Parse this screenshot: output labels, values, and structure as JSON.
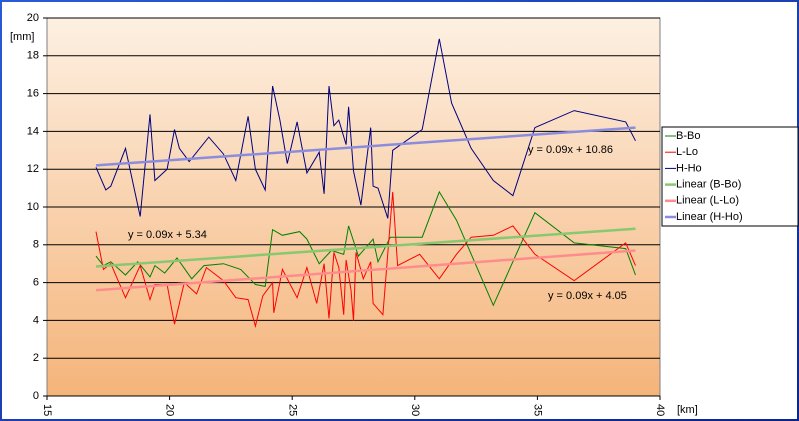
{
  "chart_data": {
    "type": "line",
    "y_label": "[mm]",
    "x_label": "[km]",
    "xlim": [
      15,
      40
    ],
    "xticks": [
      15,
      20,
      25,
      30,
      35,
      40
    ],
    "ylim": [
      0,
      20
    ],
    "yticks": [
      0,
      2,
      4,
      6,
      8,
      10,
      12,
      14,
      16,
      18,
      20
    ],
    "grid": true,
    "legend": "right",
    "series": [
      {
        "name": "B-Bo",
        "color": "#008000",
        "x": [
          17,
          17.3,
          17.6,
          18.2,
          18.7,
          19.2,
          19.4,
          19.8,
          20.3,
          20.9,
          21.4,
          22.2,
          22.9,
          23.5,
          23.9,
          24.2,
          24.6,
          25.3,
          25.6,
          26.1,
          26.6,
          27.1,
          27.3,
          27.7,
          28.3,
          28.5,
          29.0,
          30.3,
          31.0,
          31.7,
          33.2,
          34.9,
          36.5,
          38.6,
          39
        ],
        "values": [
          7.4,
          6.9,
          7.1,
          6.4,
          7.1,
          6.3,
          6.9,
          6.5,
          7.3,
          6.2,
          6.9,
          7.0,
          6.7,
          5.9,
          5.8,
          8.8,
          8.5,
          8.7,
          8.3,
          7.0,
          7.7,
          7.5,
          9.0,
          7.4,
          8.3,
          7.1,
          8.4,
          8.4,
          10.8,
          9.3,
          4.8,
          9.7,
          8.1,
          7.8,
          6.4
        ]
      },
      {
        "name": "L-Lo",
        "color": "#ff0000",
        "x": [
          17,
          17.3,
          17.6,
          18.2,
          18.8,
          19.2,
          19.4,
          19.9,
          20.2,
          20.6,
          21.1,
          21.5,
          22.2,
          22.7,
          23.2,
          23.5,
          23.8,
          24.2,
          24.25,
          24.6,
          25.2,
          25.6,
          26.0,
          26.3,
          26.5,
          26.7,
          26.9,
          27.1,
          27.2,
          27.4,
          27.5,
          27.6,
          27.9,
          28.2,
          28.3,
          28.7,
          29.1,
          29.3,
          30.2,
          31.0,
          31.7,
          32.3,
          33.2,
          34.0,
          34.9,
          36.5,
          38.6,
          39
        ],
        "values": [
          8.7,
          6.7,
          7.0,
          5.2,
          6.9,
          5.1,
          5.9,
          5.9,
          3.8,
          6.0,
          5.4,
          6.8,
          6.1,
          5.2,
          5.1,
          3.7,
          5.3,
          6.0,
          4.4,
          6.7,
          5.2,
          6.8,
          4.9,
          7.0,
          4.1,
          7.6,
          6.8,
          4.3,
          7.2,
          5.6,
          4.0,
          7.6,
          6.2,
          7.1,
          4.9,
          4.3,
          10.8,
          6.9,
          7.5,
          6.2,
          7.5,
          8.4,
          8.5,
          9.0,
          7.5,
          6.1,
          8.1,
          6.9
        ]
      },
      {
        "name": "H-Ho",
        "color": "#000080",
        "x": [
          17,
          17.4,
          17.6,
          18.2,
          18.8,
          19.2,
          19.4,
          19.9,
          20.2,
          20.4,
          20.8,
          21.6,
          22.2,
          22.7,
          23.2,
          23.5,
          23.9,
          24.2,
          24.5,
          24.8,
          25.2,
          25.6,
          26.1,
          26.3,
          26.5,
          26.7,
          26.9,
          27.2,
          27.3,
          27.5,
          27.8,
          28.2,
          28.3,
          28.5,
          28.9,
          29.1,
          30.3,
          31.0,
          31.5,
          32.3,
          33.2,
          34.0,
          34.9,
          36.5,
          38.6,
          39
        ],
        "values": [
          12.1,
          10.9,
          11.1,
          13.1,
          9.5,
          14.9,
          11.4,
          12.0,
          14.1,
          13.1,
          12.4,
          13.7,
          12.8,
          11.4,
          14.8,
          12.0,
          10.9,
          16.4,
          14.6,
          12.3,
          14.5,
          11.8,
          12.9,
          10.7,
          16.4,
          14.3,
          14.6,
          13.3,
          15.3,
          11.9,
          10.1,
          14.2,
          11.1,
          11.0,
          9.4,
          13.0,
          14.1,
          18.9,
          15.5,
          13.1,
          11.4,
          10.6,
          14.2,
          15.1,
          14.5,
          13.5
        ]
      },
      {
        "name": "Linear (B-Bo)",
        "color": "#88c870",
        "x": [
          17,
          39
        ],
        "values": [
          6.85,
          8.85
        ]
      },
      {
        "name": "Linear (L-Lo)",
        "color": "#ff8c8c",
        "x": [
          17,
          39
        ],
        "values": [
          5.6,
          7.7
        ]
      },
      {
        "name": "Linear (H-Ho)",
        "color": "#8c8cdc",
        "x": [
          17,
          39
        ],
        "values": [
          12.2,
          14.2
        ]
      }
    ],
    "annotations": [
      "y = 0.09x + 10.86",
      "y = 0.09x + 5.34",
      "y = 0.09x + 4.05"
    ]
  }
}
